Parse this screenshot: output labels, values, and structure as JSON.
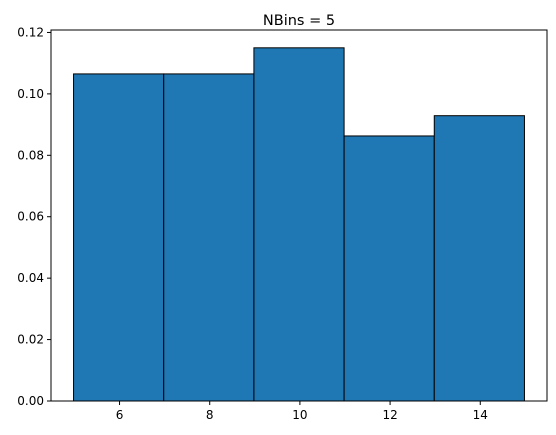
{
  "chart_data": {
    "type": "bar",
    "title": "NBins = 5",
    "xlabel": "",
    "ylabel": "",
    "bins": [
      {
        "x0": 4.98,
        "x1": 6.98,
        "value": 0.1065
      },
      {
        "x0": 6.98,
        "x1": 8.98,
        "value": 0.1065
      },
      {
        "x0": 8.98,
        "x1": 10.98,
        "value": 0.115
      },
      {
        "x0": 10.98,
        "x1": 12.98,
        "value": 0.0863
      },
      {
        "x0": 12.98,
        "x1": 14.98,
        "value": 0.0929
      }
    ],
    "xlim": [
      4.48,
      15.48
    ],
    "ylim": [
      0,
      0.1208
    ],
    "xticks": [
      6,
      8,
      10,
      12,
      14
    ],
    "xtick_labels": [
      "6",
      "8",
      "10",
      "12",
      "14"
    ],
    "yticks": [
      0.0,
      0.02,
      0.04,
      0.06,
      0.08,
      0.1,
      0.12
    ],
    "ytick_labels": [
      "0.00",
      "0.02",
      "0.04",
      "0.06",
      "0.08",
      "0.10",
      "0.12"
    ],
    "bar_color": "#1f77b4",
    "edge_color": "#000000",
    "grid": false
  }
}
